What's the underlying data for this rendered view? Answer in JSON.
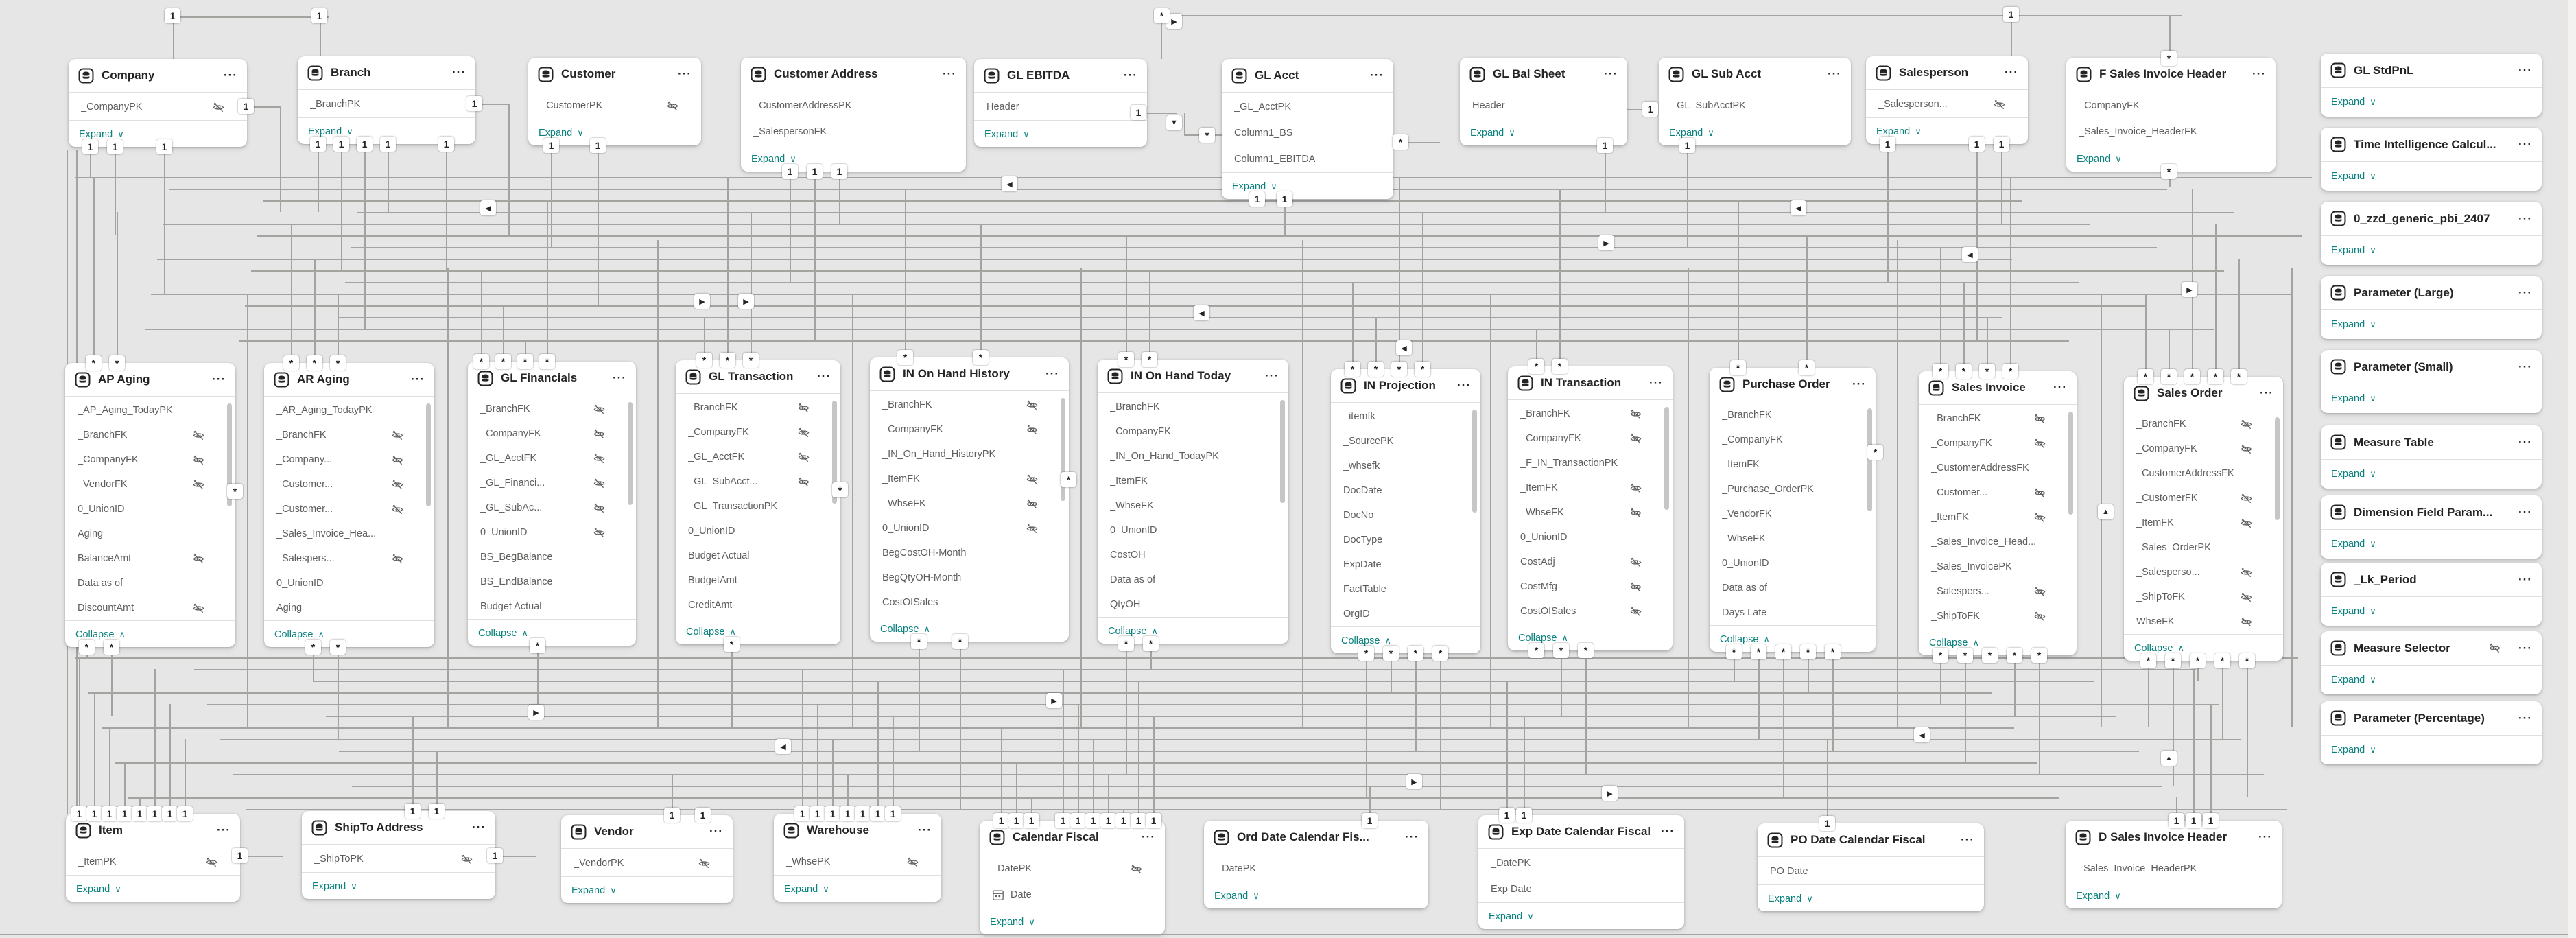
{
  "labels": {
    "expand": "Expand",
    "collapse": "Collapse",
    "menu": "···",
    "chevron_down": "∨",
    "chevron_up": "∧",
    "one": "1",
    "many": "*"
  },
  "tables": {
    "top": [
      {
        "name": "Company",
        "footer": "expand",
        "fields": [
          {
            "label": "_CompanyPK",
            "hidden": true
          }
        ]
      },
      {
        "name": "Branch",
        "footer": "expand",
        "fields": [
          {
            "label": "_BranchPK"
          }
        ]
      },
      {
        "name": "Customer",
        "footer": "expand",
        "fields": [
          {
            "label": "_CustomerPK",
            "hidden": true
          }
        ]
      },
      {
        "name": "Customer Address",
        "footer": "expand",
        "fields": [
          {
            "label": "_CustomerAddressPK"
          },
          {
            "label": "_SalespersonFK"
          }
        ]
      },
      {
        "name": "GL EBITDA",
        "footer": "expand",
        "fields": [
          {
            "label": "Header"
          }
        ]
      },
      {
        "name": "GL Acct",
        "footer": "expand",
        "fields": [
          {
            "label": "_GL_AcctPK"
          },
          {
            "label": "Column1_BS"
          },
          {
            "label": "Column1_EBITDA"
          }
        ]
      },
      {
        "name": "GL Bal Sheet",
        "footer": "expand",
        "fields": [
          {
            "label": "Header"
          }
        ]
      },
      {
        "name": "GL Sub Acct",
        "footer": "expand",
        "fields": [
          {
            "label": "_GL_SubAcctPK"
          }
        ]
      },
      {
        "name": "Salesperson",
        "footer": "expand",
        "fields": [
          {
            "label": "_Salesperson...",
            "hidden": true
          }
        ]
      },
      {
        "name": "F Sales Invoice Header",
        "footer": "expand",
        "fields": [
          {
            "label": "_CompanyFK"
          },
          {
            "label": "_Sales_Invoice_HeaderFK"
          }
        ]
      }
    ],
    "middle": [
      {
        "name": "AP Aging",
        "footer": "collapse",
        "fields": [
          {
            "label": "_AP_Aging_TodayPK"
          },
          {
            "label": "_BranchFK",
            "hidden": true
          },
          {
            "label": "_CompanyFK",
            "hidden": true
          },
          {
            "label": "_VendorFK",
            "hidden": true
          },
          {
            "label": "0_UnionID"
          },
          {
            "label": "Aging"
          },
          {
            "label": "BalanceAmt",
            "hidden": true
          },
          {
            "label": "Data as of"
          },
          {
            "label": "DiscountAmt",
            "hidden": true
          }
        ]
      },
      {
        "name": "AR Aging",
        "footer": "collapse",
        "fields": [
          {
            "label": "_AR_Aging_TodayPK"
          },
          {
            "label": "_BranchFK",
            "hidden": true
          },
          {
            "label": "_Company...",
            "hidden": true
          },
          {
            "label": "_Customer...",
            "hidden": true
          },
          {
            "label": "_Customer...",
            "hidden": true
          },
          {
            "label": "_Sales_Invoice_Hea..."
          },
          {
            "label": "_Salespers...",
            "hidden": true
          },
          {
            "label": "0_UnionID"
          },
          {
            "label": "Aging"
          }
        ]
      },
      {
        "name": "GL Financials",
        "footer": "collapse",
        "fields": [
          {
            "label": "_BranchFK",
            "hidden": true
          },
          {
            "label": "_CompanyFK",
            "hidden": true
          },
          {
            "label": "_GL_AcctFK",
            "hidden": true
          },
          {
            "label": "_GL_Financi...",
            "hidden": true
          },
          {
            "label": "_GL_SubAc...",
            "hidden": true
          },
          {
            "label": "0_UnionID",
            "hidden": true
          },
          {
            "label": "BS_BegBalance"
          },
          {
            "label": "BS_EndBalance"
          },
          {
            "label": "Budget Actual"
          }
        ]
      },
      {
        "name": "GL Transaction",
        "footer": "collapse",
        "fields": [
          {
            "label": "_BranchFK",
            "hidden": true
          },
          {
            "label": "_CompanyFK",
            "hidden": true
          },
          {
            "label": "_GL_AcctFK",
            "hidden": true
          },
          {
            "label": "_GL_SubAcct...",
            "hidden": true
          },
          {
            "label": "_GL_TransactionPK"
          },
          {
            "label": "0_UnionID"
          },
          {
            "label": "Budget Actual"
          },
          {
            "label": "BudgetAmt"
          },
          {
            "label": "CreditAmt"
          }
        ]
      },
      {
        "name": "IN On Hand History",
        "footer": "collapse",
        "fields": [
          {
            "label": "_BranchFK",
            "hidden": true
          },
          {
            "label": "_CompanyFK",
            "hidden": true
          },
          {
            "label": "_IN_On_Hand_HistoryPK"
          },
          {
            "label": "_ItemFK",
            "hidden": true
          },
          {
            "label": "_WhseFK",
            "hidden": true
          },
          {
            "label": "0_UnionID",
            "hidden": true
          },
          {
            "label": "BegCostOH-Month"
          },
          {
            "label": "BegQtyOH-Month"
          },
          {
            "label": "CostOfSales"
          }
        ]
      },
      {
        "name": "IN On Hand Today",
        "footer": "collapse",
        "fields": [
          {
            "label": "_BranchFK"
          },
          {
            "label": "_CompanyFK"
          },
          {
            "label": "_IN_On_Hand_TodayPK"
          },
          {
            "label": "_ItemFK"
          },
          {
            "label": "_WhseFK"
          },
          {
            "label": "0_UnionID"
          },
          {
            "label": "CostOH"
          },
          {
            "label": "Data as of"
          },
          {
            "label": "QtyOH"
          }
        ]
      },
      {
        "name": "IN Projection",
        "footer": "collapse",
        "fields": [
          {
            "label": "_itemfk"
          },
          {
            "label": "_SourcePK"
          },
          {
            "label": "_whsefk"
          },
          {
            "label": "DocDate"
          },
          {
            "label": "DocNo"
          },
          {
            "label": "DocType"
          },
          {
            "label": "ExpDate"
          },
          {
            "label": "FactTable"
          },
          {
            "label": "OrgID"
          }
        ]
      },
      {
        "name": "IN Transaction",
        "footer": "collapse",
        "fields": [
          {
            "label": "_BranchFK",
            "hidden": true
          },
          {
            "label": "_CompanyFK",
            "hidden": true
          },
          {
            "label": "_F_IN_TransactionPK"
          },
          {
            "label": "_ItemFK",
            "hidden": true
          },
          {
            "label": "_WhseFK",
            "hidden": true
          },
          {
            "label": "0_UnionID"
          },
          {
            "label": "CostAdj",
            "hidden": true
          },
          {
            "label": "CostMfg",
            "hidden": true
          },
          {
            "label": "CostOfSales",
            "hidden": true
          }
        ]
      },
      {
        "name": "Purchase Order",
        "footer": "collapse",
        "fields": [
          {
            "label": "_BranchFK"
          },
          {
            "label": "_CompanyFK"
          },
          {
            "label": "_ItemFK"
          },
          {
            "label": "_Purchase_OrderPK"
          },
          {
            "label": "_VendorFK"
          },
          {
            "label": "_WhseFK"
          },
          {
            "label": "0_UnionID"
          },
          {
            "label": "Data as of"
          },
          {
            "label": "Days Late"
          }
        ]
      },
      {
        "name": "Sales Invoice",
        "footer": "collapse",
        "fields": [
          {
            "label": "_BranchFK",
            "hidden": true
          },
          {
            "label": "_CompanyFK",
            "hidden": true
          },
          {
            "label": "_CustomerAddressFK"
          },
          {
            "label": "_Customer...",
            "hidden": true
          },
          {
            "label": "_ItemFK",
            "hidden": true
          },
          {
            "label": "_Sales_Invoice_Head..."
          },
          {
            "label": "_Sales_InvoicePK"
          },
          {
            "label": "_Salespers...",
            "hidden": true
          },
          {
            "label": "_ShipToFK",
            "hidden": true
          }
        ]
      },
      {
        "name": "Sales Order",
        "footer": "collapse",
        "fields": [
          {
            "label": "_BranchFK",
            "hidden": true
          },
          {
            "label": "_CompanyFK",
            "hidden": true
          },
          {
            "label": "_CustomerAddressFK"
          },
          {
            "label": "_CustomerFK",
            "hidden": true
          },
          {
            "label": "_ItemFK",
            "hidden": true
          },
          {
            "label": "_Sales_OrderPK"
          },
          {
            "label": "_Salesperso...",
            "hidden": true
          },
          {
            "label": "_ShipToFK",
            "hidden": true
          },
          {
            "label": "WhseFK",
            "hidden": true
          }
        ]
      }
    ],
    "bottom": [
      {
        "name": "Item",
        "footer": "expand",
        "fields": [
          {
            "label": "_ItemPK",
            "hidden": true
          }
        ]
      },
      {
        "name": "ShipTo Address",
        "footer": "expand",
        "fields": [
          {
            "label": "_ShipToPK",
            "hidden": true
          }
        ]
      },
      {
        "name": "Vendor",
        "footer": "expand",
        "fields": [
          {
            "label": "_VendorPK",
            "hidden": true
          }
        ]
      },
      {
        "name": "Warehouse",
        "footer": "expand",
        "fields": [
          {
            "label": "_WhsePK",
            "hidden": true
          }
        ]
      },
      {
        "name": "Calendar Fiscal",
        "footer": "expand",
        "fields": [
          {
            "label": "_DatePK",
            "hidden": true
          },
          {
            "label": "Date",
            "icon": "calendar"
          }
        ]
      },
      {
        "name": "Ord Date Calendar Fis...",
        "footer": "expand",
        "fields": [
          {
            "label": "_DatePK"
          }
        ]
      },
      {
        "name": "Exp Date Calendar Fiscal",
        "footer": "expand",
        "fields": [
          {
            "label": "_DatePK"
          },
          {
            "label": "Exp Date"
          }
        ]
      },
      {
        "name": "PO Date Calendar Fiscal",
        "footer": "expand",
        "fields": [
          {
            "label": "PO Date"
          }
        ]
      },
      {
        "name": "D Sales Invoice Header",
        "footer": "expand",
        "fields": [
          {
            "label": "_Sales_Invoice_HeaderPK"
          }
        ]
      }
    ],
    "sidebar": [
      {
        "name": "GL StdPnL",
        "footer": "expand"
      },
      {
        "name": "Time Intelligence Calcul...",
        "footer": "expand"
      },
      {
        "name": "0_zzd_generic_pbi_2407",
        "footer": "expand"
      },
      {
        "name": "Parameter (Large)",
        "footer": "expand"
      },
      {
        "name": "Parameter (Small)",
        "footer": "expand"
      },
      {
        "name": "Measure Table",
        "footer": "expand"
      },
      {
        "name": "Dimension Field Param...",
        "footer": "expand"
      },
      {
        "name": "_Lk_Period",
        "footer": "expand"
      },
      {
        "name": "Measure Selector",
        "footer": "expand",
        "hidden": true
      },
      {
        "name": "Parameter (Percentage)",
        "footer": "expand"
      }
    ]
  }
}
